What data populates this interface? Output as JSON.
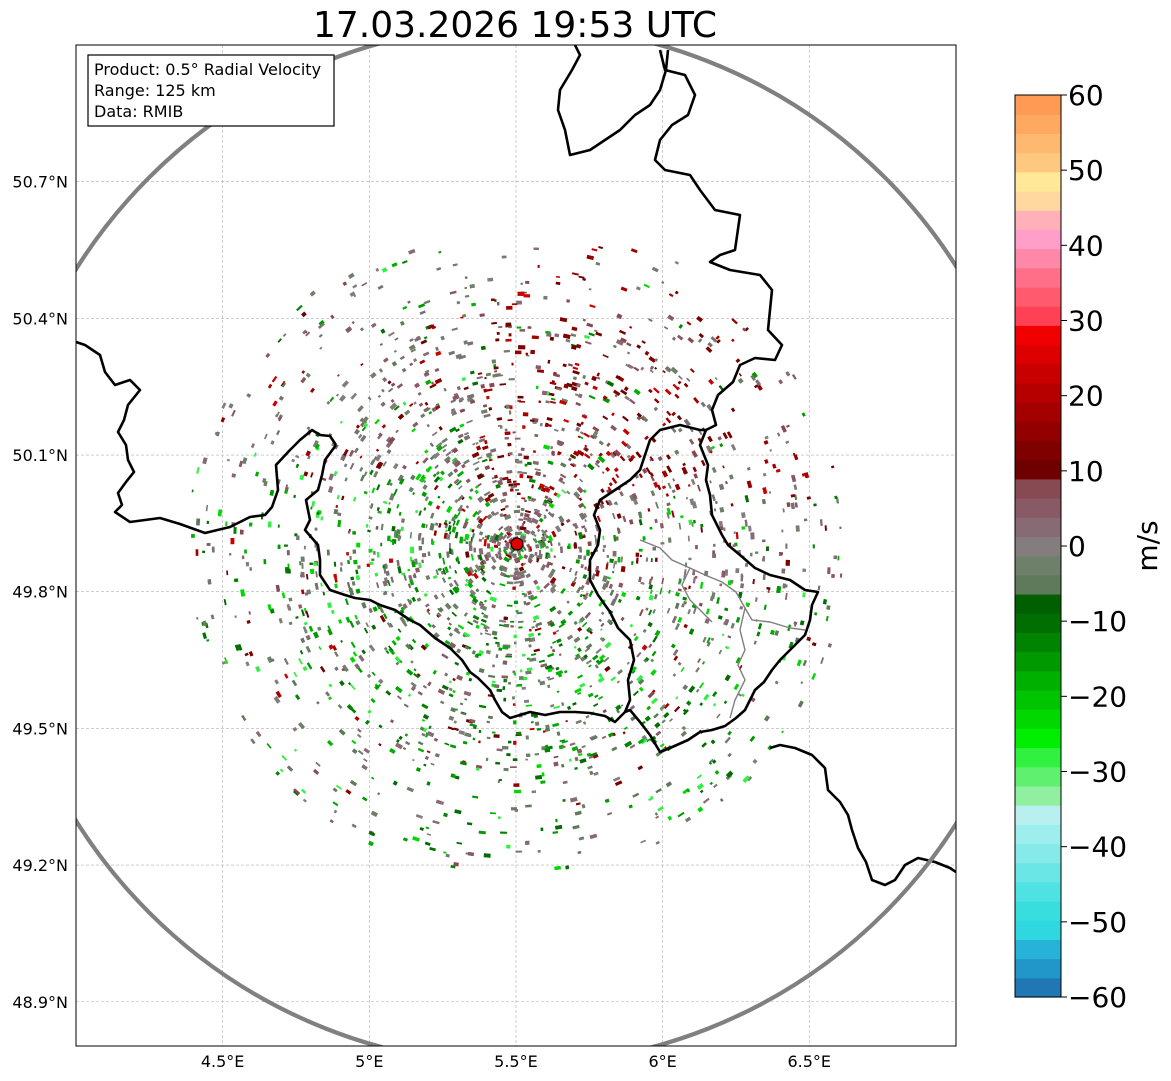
{
  "title": "17.03.2026 19:53 UTC",
  "info_box": {
    "product": "Product: 0.5° Radial Velocity",
    "range": "Range: 125 km",
    "source": "Data: RMIB"
  },
  "map": {
    "lon_range": [
      4.0,
      7.0
    ],
    "lat_range": [
      48.8,
      51.0
    ],
    "lon_ticks": [
      {
        "value": 4.5,
        "label": "4.5°E"
      },
      {
        "value": 5.0,
        "label": "5°E"
      },
      {
        "value": 5.5,
        "label": "5.5°E"
      },
      {
        "value": 6.0,
        "label": "6°E"
      },
      {
        "value": 6.5,
        "label": "6.5°E"
      }
    ],
    "lat_ticks": [
      {
        "value": 50.7,
        "label": "50.7°N"
      },
      {
        "value": 50.4,
        "label": "50.4°N"
      },
      {
        "value": 50.1,
        "label": "50.1°N"
      },
      {
        "value": 49.8,
        "label": "49.8°N"
      },
      {
        "value": 49.5,
        "label": "49.5°N"
      },
      {
        "value": 49.2,
        "label": "49.2°N"
      },
      {
        "value": 48.9,
        "label": "48.9°N"
      }
    ],
    "radar_site": {
      "lon": 5.5,
      "lat": 49.915
    },
    "range_km": 125,
    "grid": true,
    "colors": {
      "range_ring": "#808080",
      "border": "#000000",
      "grid": "#b0b0b0",
      "site": "#e00000"
    }
  },
  "colorbar": {
    "label": "m/s",
    "vmin": -60,
    "vmax": 60,
    "ticks": [
      60,
      50,
      40,
      30,
      20,
      10,
      0,
      -10,
      -20,
      -30,
      -40,
      -50,
      -60
    ],
    "tick_labels": [
      "60",
      "50",
      "40",
      "30",
      "20",
      "10",
      "0",
      "−10",
      "−20",
      "−30",
      "−40",
      "−50",
      "−60"
    ],
    "colors_bottom_to_top": [
      "#1f77b4",
      "#2196c8",
      "#27b3d8",
      "#2fd8e0",
      "#38dede",
      "#4ee2e2",
      "#6ae6e6",
      "#86eaea",
      "#9eeeee",
      "#b8f0f0",
      "#90f0a0",
      "#5ef06e",
      "#30f040",
      "#00ee00",
      "#00d800",
      "#00c400",
      "#00b000",
      "#009a00",
      "#008400",
      "#006e00",
      "#006000",
      "#5e7a5a",
      "#6e806a",
      "#857d7d",
      "#876a74",
      "#885a66",
      "#884a52",
      "#6e0000",
      "#800000",
      "#920000",
      "#a40000",
      "#b60000",
      "#c80000",
      "#dc0000",
      "#f00000",
      "#ff4055",
      "#ff5a6e",
      "#ff7088",
      "#ff88a8",
      "#ff9ec8",
      "#ffb0b8",
      "#ffd8a0",
      "#ffe898",
      "#ffc880",
      "#ffb870",
      "#ffa860",
      "#ff9a55"
    ]
  }
}
